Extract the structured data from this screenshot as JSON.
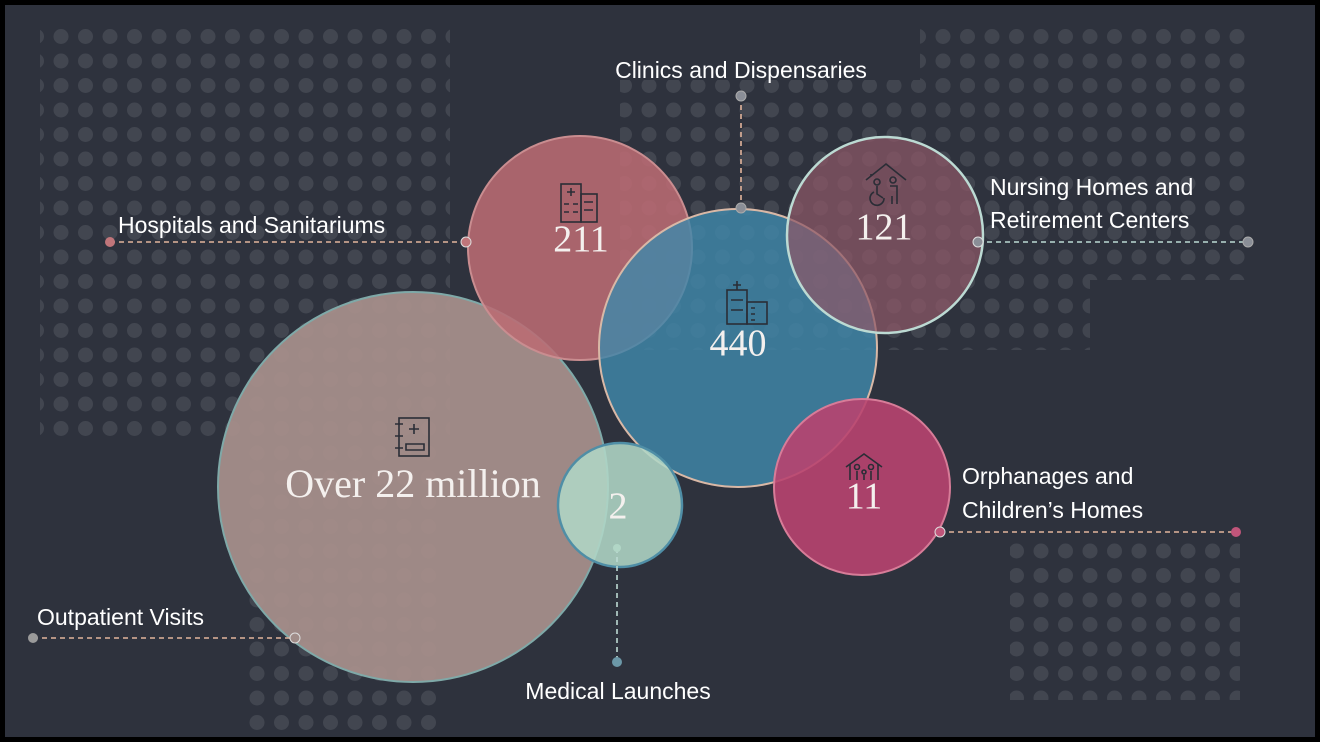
{
  "items": [
    {
      "label": [
        "Clinics and Dispensaries"
      ],
      "value": "440"
    },
    {
      "label": [
        "Hospitals and Sanitariums"
      ],
      "value": "211"
    },
    {
      "label": [
        "Nursing Homes and",
        "Retirement Centers"
      ],
      "value": "121"
    },
    {
      "label": [
        "Orphanages and",
        "Children’s Homes"
      ],
      "value": "11"
    },
    {
      "label": [
        "Outpatient Visits"
      ],
      "value": "Over 22 million"
    },
    {
      "label": [
        "Medical Launches"
      ],
      "value": "2"
    }
  ]
}
